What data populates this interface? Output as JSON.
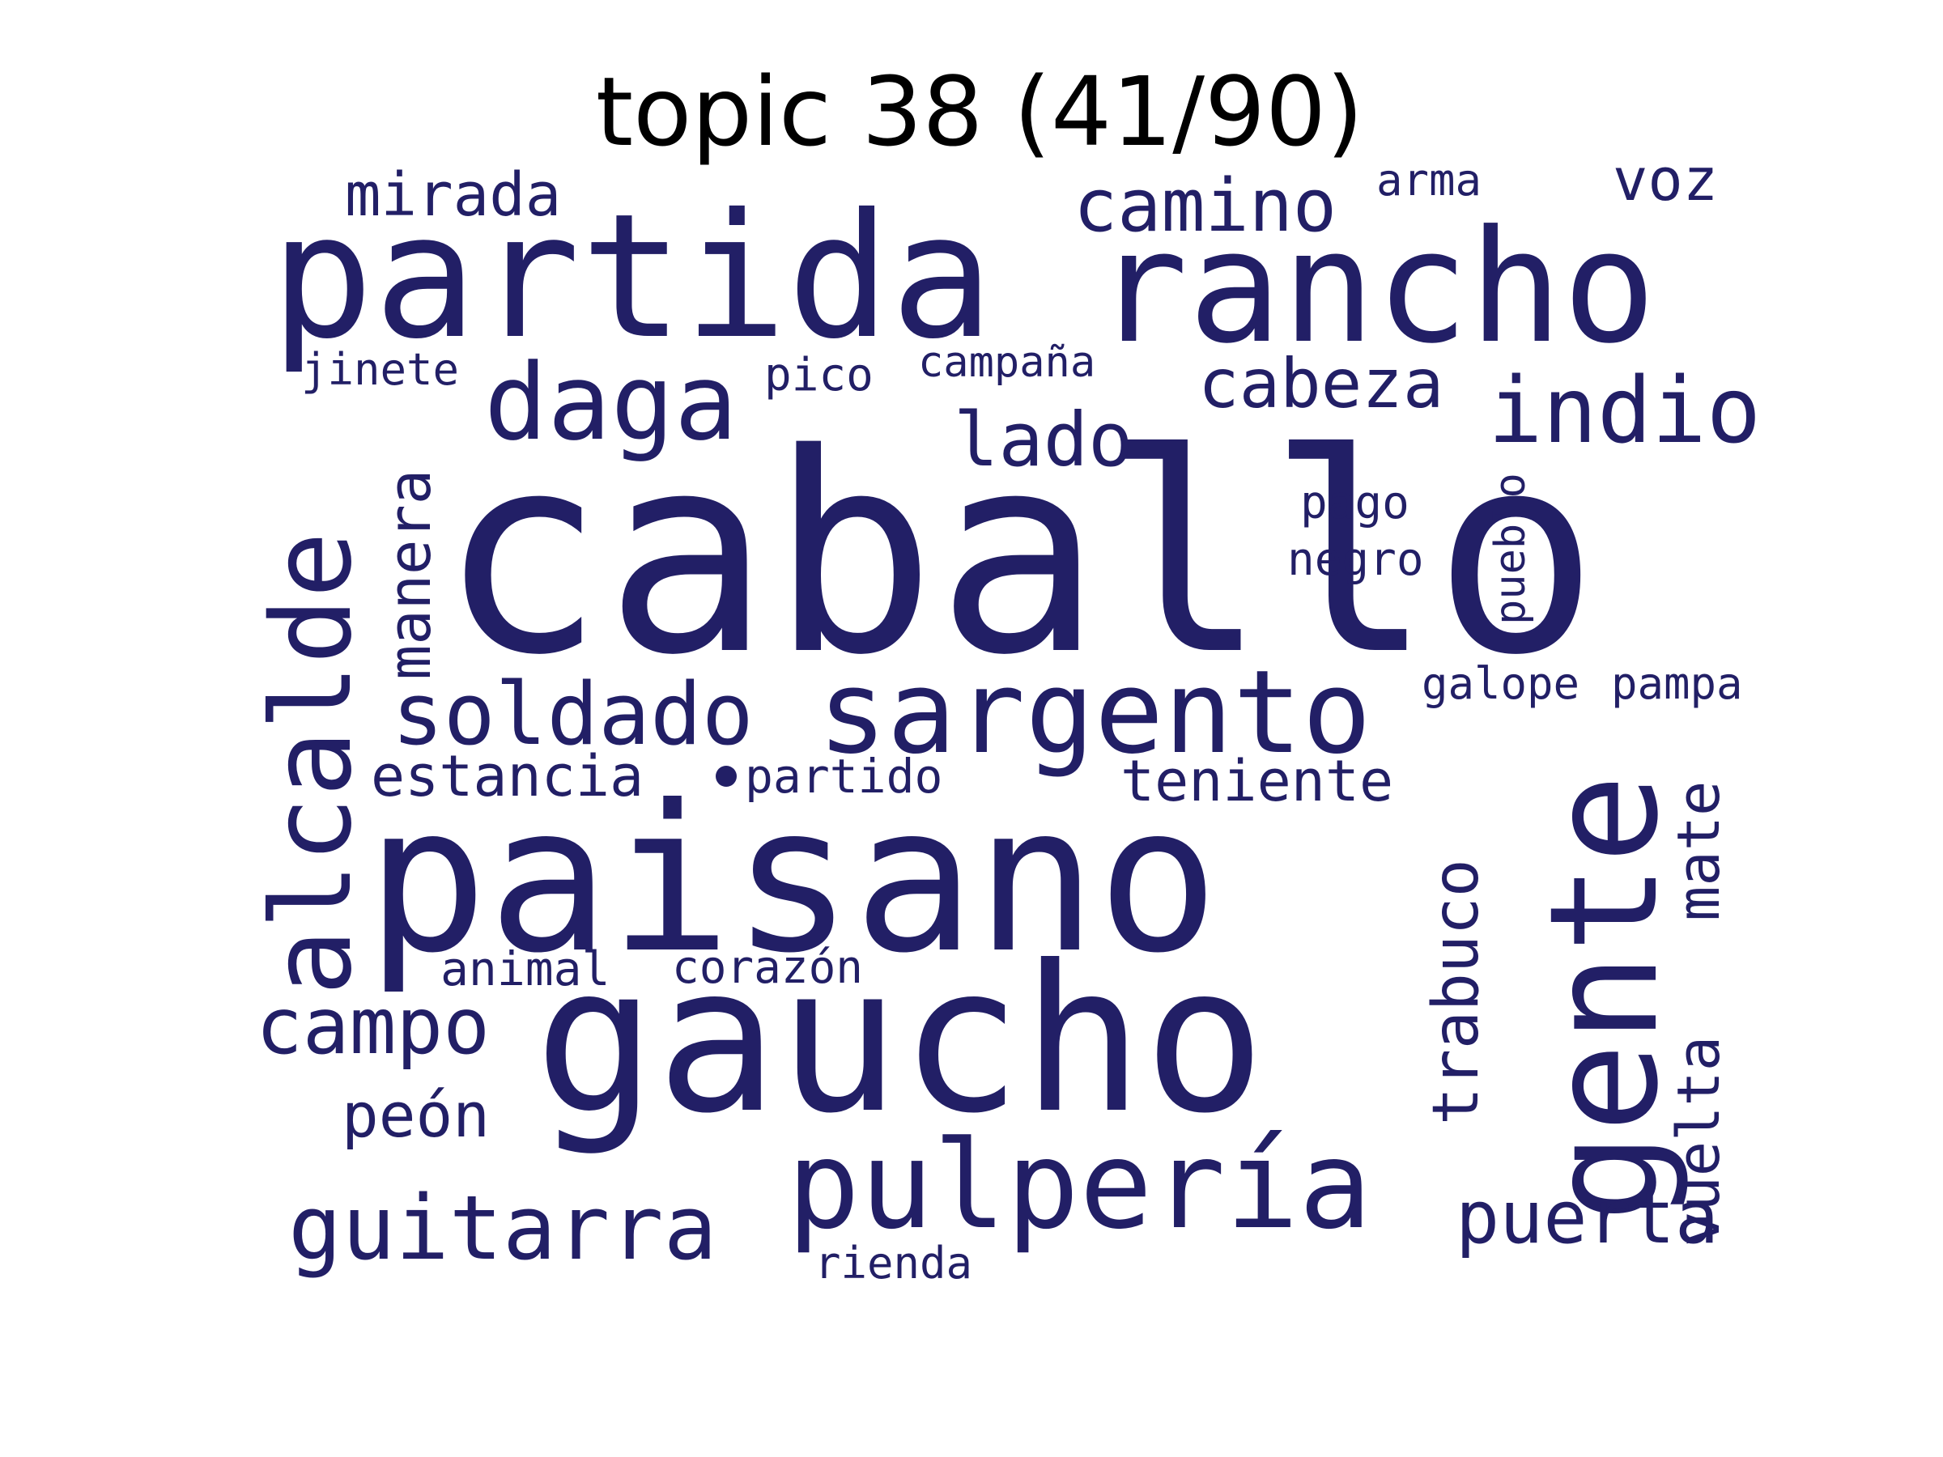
{
  "title": "topic 38 (41/90)",
  "colors": {
    "word": "#221f66",
    "background": "#ffffff",
    "title": "#000000"
  },
  "words": {
    "caballo": "caballo",
    "paisano": "paisano",
    "gaucho": "gaucho",
    "partida": "partida",
    "rancho": "rancho",
    "gente": "gente",
    "alcalde": "alcalde",
    "sargento": "sargento",
    "pulperia": "pulpería",
    "daga": "daga",
    "indio": "indio",
    "soldado": "soldado",
    "guitarra": "guitarra",
    "campo": "campo",
    "camino": "camino",
    "cabeza": "cabeza",
    "lado": "lado",
    "trabuco": "trabuco",
    "puerta": "puerta",
    "mate": "mate",
    "vuelta": "vuelta",
    "mirada": "mirada",
    "manera": "manera",
    "estancia": "estancia",
    "teniente": "teniente",
    "peon": "peón",
    "voz": "voz",
    "pago": "pago",
    "negro": "negro",
    "pueblo": "pueblo",
    "jinete": "jinete",
    "pico": "pico",
    "campana": "campaña",
    "arma": "arma",
    "galope": "galope",
    "pampa": "pampa",
    "partido": "partido",
    "animal": "animal",
    "corazon": "corazón",
    "rienda": "rienda"
  }
}
